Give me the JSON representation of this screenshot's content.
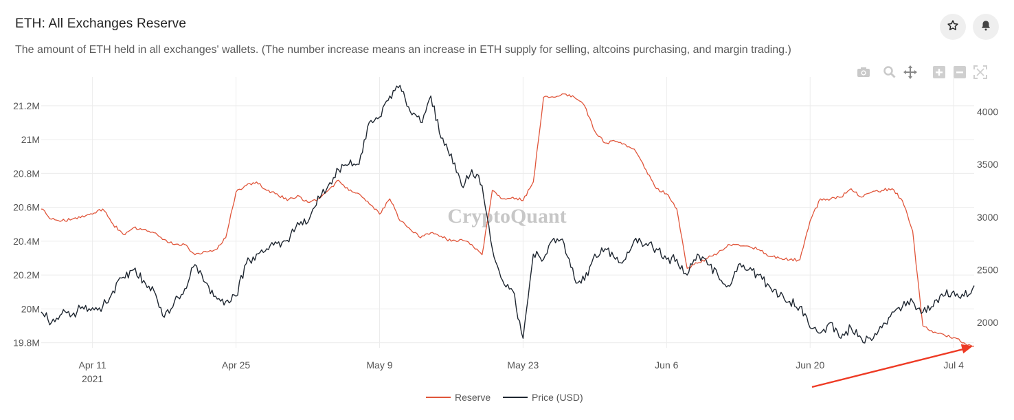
{
  "header": {
    "title": "ETH: All Exchanges Reserve",
    "subtitle": "The amount of ETH held in all exchanges' wallets. (The number increase means an increase in ETH supply for selling, altcoins purchasing, and margin trading.)",
    "star_icon": "star-icon",
    "bell_icon": "bell-icon"
  },
  "toolbar": {
    "icons": [
      "camera-icon",
      "zoom-icon",
      "pan-icon",
      "zoom-in-icon",
      "zoom-out-icon",
      "autoscale-icon"
    ]
  },
  "watermark": "CryptoQuant",
  "colors": {
    "reserve": "#e0553a",
    "price": "#1e2630",
    "arrow": "#ee3a24",
    "grid": "#ececec"
  },
  "chart_data": {
    "type": "line",
    "title": "ETH: All Exchanges Reserve",
    "x_range": [
      "2021-04-06",
      "2021-07-06"
    ],
    "x_ticks": [
      {
        "date": "2021-04-11",
        "label": "Apr 11",
        "sublabel": "2021"
      },
      {
        "date": "2021-04-25",
        "label": "Apr 25"
      },
      {
        "date": "2021-05-09",
        "label": "May 9"
      },
      {
        "date": "2021-05-23",
        "label": "May 23"
      },
      {
        "date": "2021-06-06",
        "label": "Jun 6"
      },
      {
        "date": "2021-06-20",
        "label": "Jun 20"
      },
      {
        "date": "2021-07-04",
        "label": "Jul 4"
      }
    ],
    "y_left": {
      "range": [
        19770000,
        21370000
      ],
      "ticks": [
        19800000,
        20000000,
        20200000,
        20400000,
        20600000,
        20800000,
        21000000,
        21200000
      ],
      "tick_labels": [
        "19.8M",
        "20M",
        "20.2M",
        "20.4M",
        "20.6M",
        "20.8M",
        "21M",
        "21.2M"
      ]
    },
    "y_right": {
      "range": [
        1760,
        4330
      ],
      "ticks": [
        2000,
        2500,
        3000,
        3500,
        4000
      ],
      "tick_labels": [
        "2000",
        "2500",
        "3000",
        "3500",
        "4000"
      ]
    },
    "grid": true,
    "legend_position": "bottom-center",
    "series": [
      {
        "name": "Reserve",
        "axis": "left",
        "x": [
          "2021-04-06",
          "2021-04-07",
          "2021-04-08",
          "2021-04-09",
          "2021-04-10",
          "2021-04-11",
          "2021-04-12",
          "2021-04-13",
          "2021-04-14",
          "2021-04-15",
          "2021-04-16",
          "2021-04-17",
          "2021-04-18",
          "2021-04-19",
          "2021-04-20",
          "2021-04-21",
          "2021-04-22",
          "2021-04-23",
          "2021-04-24",
          "2021-04-25",
          "2021-04-26",
          "2021-04-27",
          "2021-04-28",
          "2021-04-29",
          "2021-04-30",
          "2021-05-01",
          "2021-05-02",
          "2021-05-03",
          "2021-05-04",
          "2021-05-05",
          "2021-05-06",
          "2021-05-07",
          "2021-05-08",
          "2021-05-09",
          "2021-05-10",
          "2021-05-11",
          "2021-05-12",
          "2021-05-13",
          "2021-05-14",
          "2021-05-15",
          "2021-05-16",
          "2021-05-17",
          "2021-05-18",
          "2021-05-19",
          "2021-05-20",
          "2021-05-21",
          "2021-05-22",
          "2021-05-23",
          "2021-05-24",
          "2021-05-25",
          "2021-05-26",
          "2021-05-27",
          "2021-05-28",
          "2021-05-29",
          "2021-05-30",
          "2021-05-31",
          "2021-06-01",
          "2021-06-02",
          "2021-06-03",
          "2021-06-04",
          "2021-06-05",
          "2021-06-06",
          "2021-06-07",
          "2021-06-08",
          "2021-06-09",
          "2021-06-10",
          "2021-06-11",
          "2021-06-12",
          "2021-06-13",
          "2021-06-14",
          "2021-06-15",
          "2021-06-16",
          "2021-06-17",
          "2021-06-18",
          "2021-06-19",
          "2021-06-20",
          "2021-06-21",
          "2021-06-22",
          "2021-06-23",
          "2021-06-24",
          "2021-06-25",
          "2021-06-26",
          "2021-06-27",
          "2021-06-28",
          "2021-06-29",
          "2021-06-30",
          "2021-07-01",
          "2021-07-02",
          "2021-07-03",
          "2021-07-04",
          "2021-07-05",
          "2021-07-06"
        ],
        "values": [
          20590000,
          20530000,
          20520000,
          20530000,
          20550000,
          20560000,
          20590000,
          20500000,
          20440000,
          20480000,
          20470000,
          20450000,
          20410000,
          20380000,
          20380000,
          20320000,
          20340000,
          20350000,
          20420000,
          20690000,
          20730000,
          20750000,
          20700000,
          20680000,
          20640000,
          20670000,
          20630000,
          20650000,
          20700000,
          20760000,
          20700000,
          20680000,
          20620000,
          20560000,
          20650000,
          20520000,
          20470000,
          20420000,
          20450000,
          20430000,
          20400000,
          20410000,
          20380000,
          20320000,
          20700000,
          20650000,
          20660000,
          20640000,
          20750000,
          21250000,
          21250000,
          21270000,
          21250000,
          21200000,
          21050000,
          20980000,
          20990000,
          20970000,
          20930000,
          20820000,
          20710000,
          20680000,
          20590000,
          20240000,
          20270000,
          20300000,
          20330000,
          20380000,
          20380000,
          20370000,
          20350000,
          20310000,
          20300000,
          20290000,
          20290000,
          20520000,
          20650000,
          20650000,
          20660000,
          20710000,
          20660000,
          20690000,
          20700000,
          20710000,
          20640000,
          20460000,
          19900000,
          19860000,
          19850000,
          19830000,
          19800000,
          19780000
        ]
      },
      {
        "name": "Price (USD)",
        "axis": "right",
        "x": [
          "2021-04-06",
          "2021-04-07",
          "2021-04-08",
          "2021-04-09",
          "2021-04-10",
          "2021-04-11",
          "2021-04-12",
          "2021-04-13",
          "2021-04-14",
          "2021-04-15",
          "2021-04-16",
          "2021-04-17",
          "2021-04-18",
          "2021-04-19",
          "2021-04-20",
          "2021-04-21",
          "2021-04-22",
          "2021-04-23",
          "2021-04-24",
          "2021-04-25",
          "2021-04-26",
          "2021-04-27",
          "2021-04-28",
          "2021-04-29",
          "2021-04-30",
          "2021-05-01",
          "2021-05-02",
          "2021-05-03",
          "2021-05-04",
          "2021-05-05",
          "2021-05-06",
          "2021-05-07",
          "2021-05-08",
          "2021-05-09",
          "2021-05-10",
          "2021-05-11",
          "2021-05-12",
          "2021-05-13",
          "2021-05-14",
          "2021-05-15",
          "2021-05-16",
          "2021-05-17",
          "2021-05-18",
          "2021-05-19",
          "2021-05-20",
          "2021-05-21",
          "2021-05-22",
          "2021-05-23",
          "2021-05-24",
          "2021-05-25",
          "2021-05-26",
          "2021-05-27",
          "2021-05-28",
          "2021-05-29",
          "2021-05-30",
          "2021-05-31",
          "2021-06-01",
          "2021-06-02",
          "2021-06-03",
          "2021-06-04",
          "2021-06-05",
          "2021-06-06",
          "2021-06-07",
          "2021-06-08",
          "2021-06-09",
          "2021-06-10",
          "2021-06-11",
          "2021-06-12",
          "2021-06-13",
          "2021-06-14",
          "2021-06-15",
          "2021-06-16",
          "2021-06-17",
          "2021-06-18",
          "2021-06-19",
          "2021-06-20",
          "2021-06-21",
          "2021-06-22",
          "2021-06-23",
          "2021-06-24",
          "2021-06-25",
          "2021-06-26",
          "2021-06-27",
          "2021-06-28",
          "2021-06-29",
          "2021-06-30",
          "2021-07-01",
          "2021-07-02",
          "2021-07-03",
          "2021-07-04",
          "2021-07-05",
          "2021-07-06"
        ],
        "values": [
          2100,
          2000,
          2080,
          2070,
          2150,
          2140,
          2150,
          2300,
          2430,
          2500,
          2400,
          2300,
          2050,
          2200,
          2320,
          2550,
          2380,
          2250,
          2200,
          2250,
          2560,
          2650,
          2700,
          2750,
          2780,
          2950,
          2950,
          3200,
          3300,
          3450,
          3500,
          3500,
          3900,
          3950,
          4150,
          4250,
          4000,
          3900,
          4150,
          3750,
          3600,
          3300,
          3450,
          3300,
          2700,
          2400,
          2300,
          1850,
          2650,
          2600,
          2800,
          2750,
          2420,
          2400,
          2650,
          2700,
          2600,
          2600,
          2800,
          2750,
          2700,
          2600,
          2600,
          2450,
          2650,
          2550,
          2450,
          2350,
          2550,
          2500,
          2450,
          2350,
          2250,
          2200,
          2150,
          1950,
          1900,
          2000,
          1850,
          1950,
          1850,
          1830,
          1950,
          2100,
          2150,
          2200,
          2100,
          2150,
          2250,
          2300,
          2250,
          2350
        ]
      }
    ],
    "legend": [
      "Reserve",
      "Price (USD)"
    ]
  }
}
